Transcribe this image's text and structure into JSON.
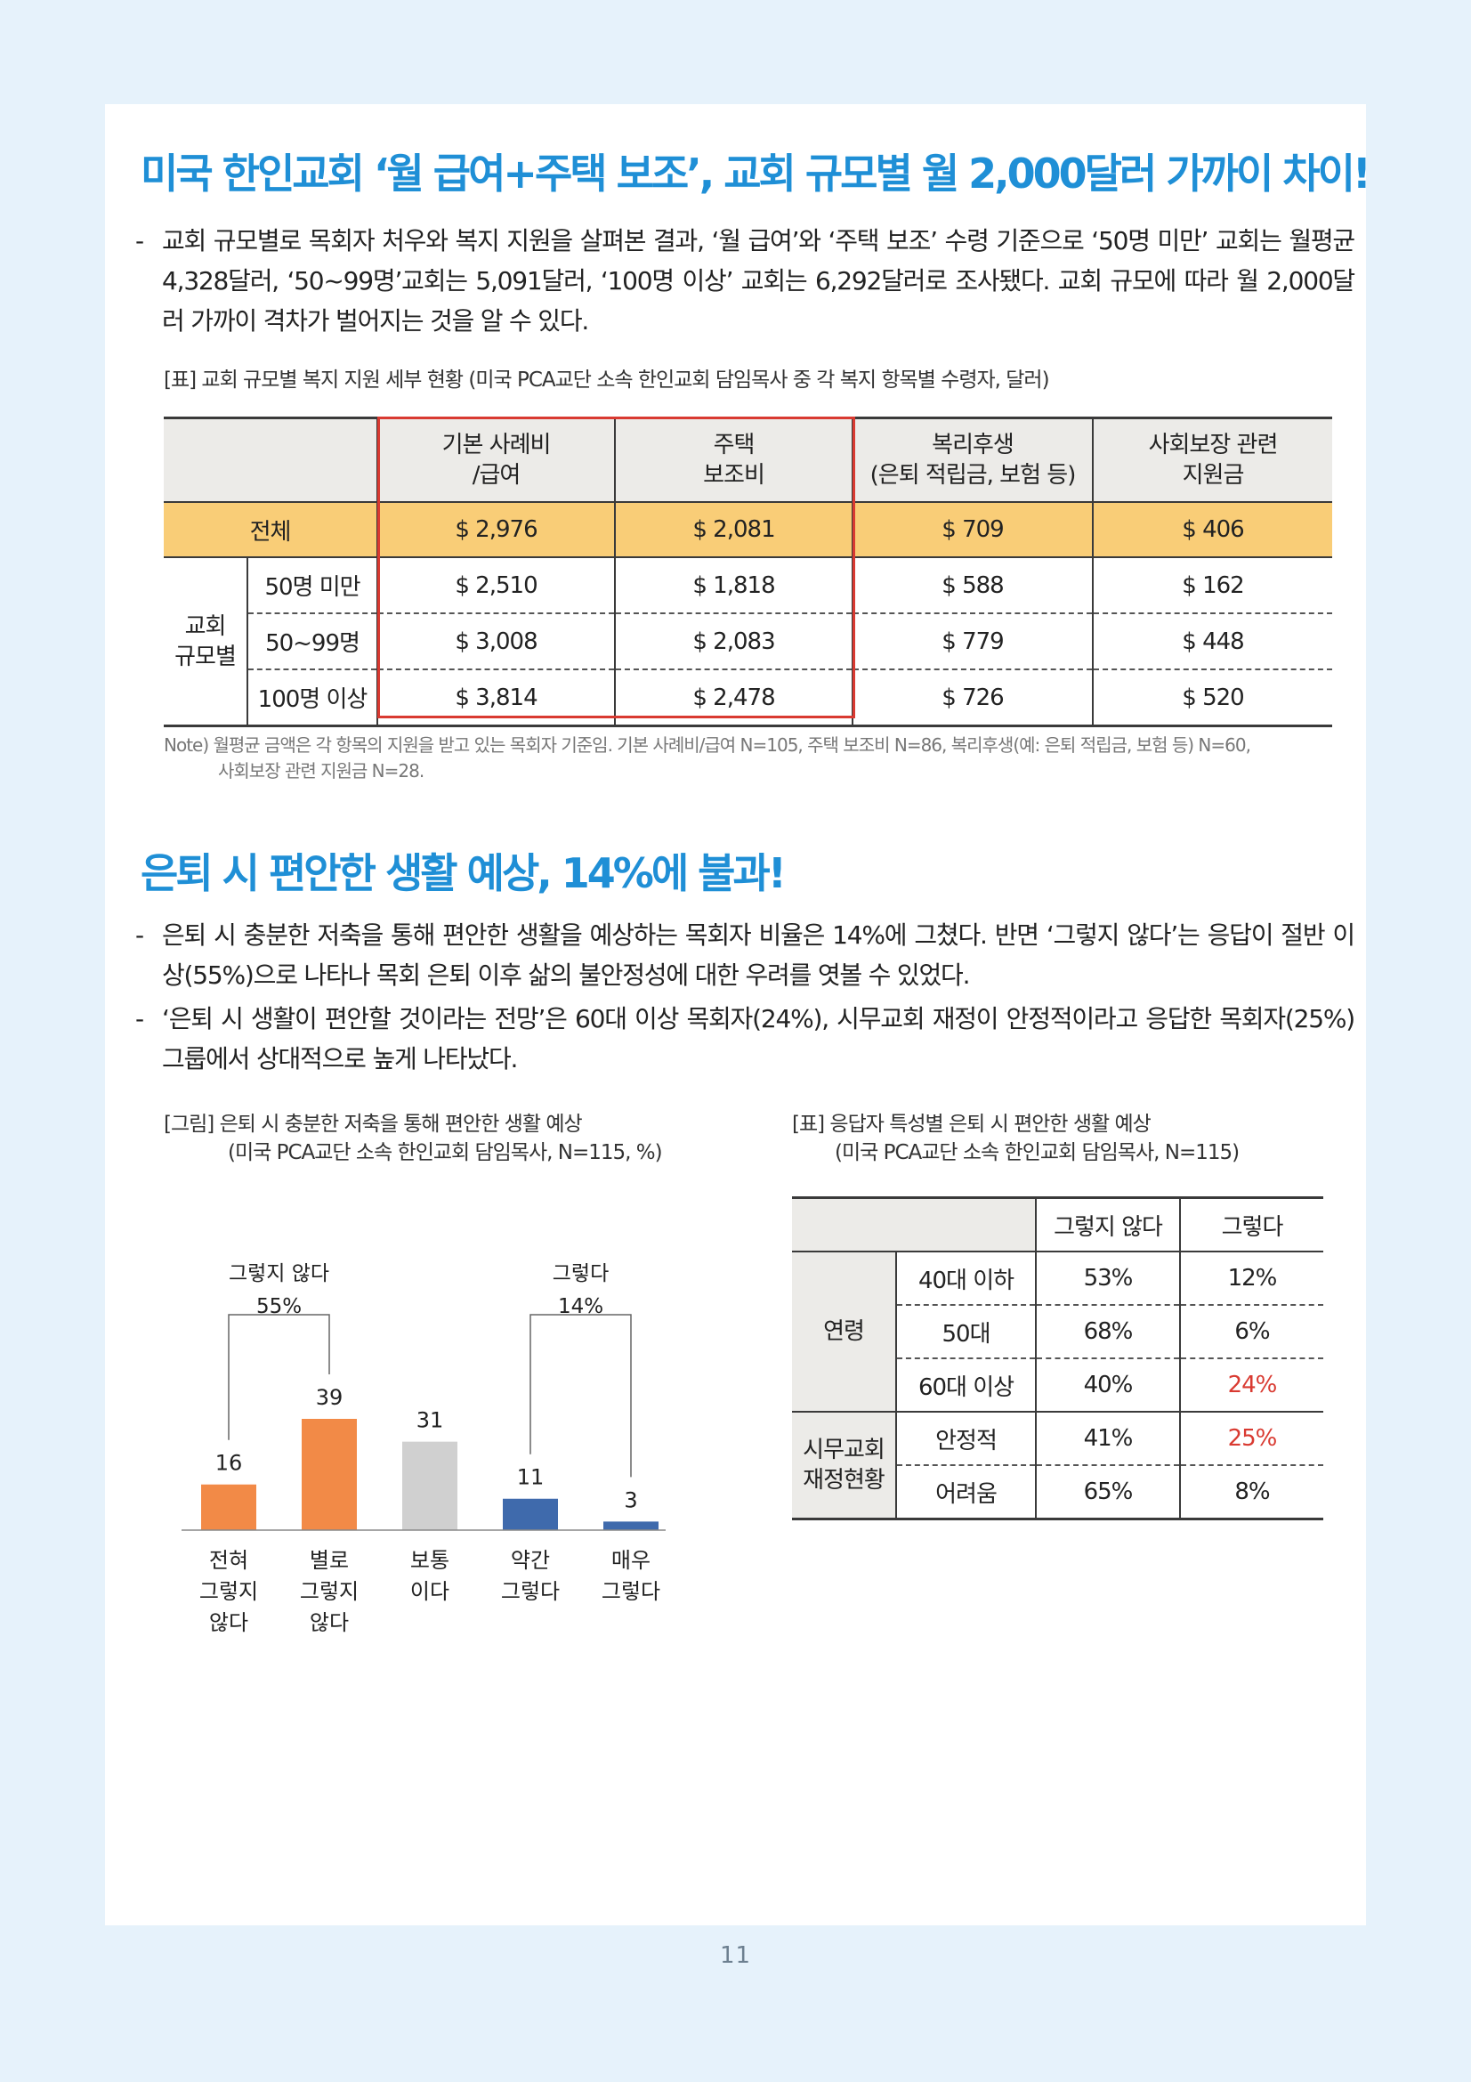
{
  "section1": {
    "title": "미국 한인교회 ‘월 급여+주택 보조’, 교회 규모별 월 2,000달러 가까이 차이!",
    "bullets": [
      "교회 규모별로 목회자 처우와 복지 지원을 살펴본 결과, ‘월 급여’와 ‘주택 보조’ 수령 기준으로 ‘50명 미만’ 교회는 월평균 4,328달러, ‘50~99명’교회는 5,091달러, ‘100명 이상’ 교회는 6,292달러로 조사됐다. 교회 규모에 따라 월 2,000달러 가까이 격차가 벌어지는 것을 알 수 있다."
    ],
    "table_caption": "[표] 교회 규모별 복지 지원 세부 현황 (미국 PCA교단 소속 한인교회 담임목사 중 각 복지 항목별 수령자, 달러)",
    "table": {
      "headers": [
        "기본 사례비\n/급여",
        "주택\n보조비",
        "복리후생\n(은퇴 적립금, 보험 등)",
        "사회보장 관련\n지원금"
      ],
      "total": {
        "label": "전체",
        "values": [
          "$ 2,976",
          "$ 2,081",
          "$ 709",
          "$ 406"
        ]
      },
      "group_label": "교회\n규모별",
      "rows": [
        {
          "label": "50명 미만",
          "values": [
            "$ 2,510",
            "$ 1,818",
            "$ 588",
            "$ 162"
          ]
        },
        {
          "label": "50~99명",
          "values": [
            "$ 3,008",
            "$ 2,083",
            "$ 779",
            "$ 448"
          ]
        },
        {
          "label": "100명 이상",
          "values": [
            "$ 3,814",
            "$ 2,478",
            "$ 726",
            "$ 520"
          ]
        }
      ],
      "highlight_color": "#d93a31"
    },
    "note_line1": "Note) 월평균 금액은 각 항목의 지원을 받고 있는 목회자 기준임. 기본 사례비/급여 N=105, 주택 보조비 N=86, 복리후생(예: 은퇴 적립금, 보험 등) N=60,",
    "note_line2": "사회보장 관련 지원금 N=28."
  },
  "section2": {
    "title": "은퇴 시 편안한 생활 예상, 14%에 불과!",
    "bullets": [
      "은퇴 시 충분한 저축을 통해 편안한 생활을 예상하는 목회자 비율은 14%에 그쳤다. 반면 ‘그렇지 않다’는 응답이 절반 이상(55%)으로 나타나 목회 은퇴 이후 삶의 불안정성에 대한 우려를 엿볼 수 있었다.",
      "‘은퇴 시 생활이 편안할 것이라는 전망’은 60대 이상 목회자(24%), 시무교회 재정이 안정적이라고 응답한 목회자(25%) 그룹에서 상대적으로 높게 나타났다."
    ],
    "figure_caption_line1": "[그림] 은퇴 시 충분한 저축을 통해 편안한 생활 예상",
    "figure_caption_line2": "(미국 PCA교단 소속 한인교회 담임목사, N=115, %)",
    "table_caption_line1": "[표] 응답자 특성별 은퇴 시 편안한 생활 예상",
    "table_caption_line2": "(미국 PCA교단 소속 한인교회 담임목사, N=115)",
    "table": {
      "headers": [
        "그렇지 않다",
        "그렇다"
      ],
      "groups": [
        {
          "label": "연령",
          "rows": [
            {
              "label": "40대 이하",
              "values": [
                "53%",
                "12%"
              ],
              "highlight": false
            },
            {
              "label": "50대",
              "values": [
                "68%",
                "6%"
              ],
              "highlight": false
            },
            {
              "label": "60대 이상",
              "values": [
                "40%",
                "24%"
              ],
              "highlight": true
            }
          ]
        },
        {
          "label": "시무교회\n재정현황",
          "rows": [
            {
              "label": "안정적",
              "values": [
                "41%",
                "25%"
              ],
              "highlight": true
            },
            {
              "label": "어려움",
              "values": [
                "65%",
                "8%"
              ],
              "highlight": false
            }
          ]
        }
      ]
    }
  },
  "chart_data": {
    "type": "bar",
    "categories": [
      "전혀\n그렇지\n않다",
      "별로\n그렇지\n않다",
      "보통\n이다",
      "약간\n그렇다",
      "매우\n그렇다"
    ],
    "values": [
      16,
      39,
      31,
      11,
      3
    ],
    "colors": [
      "#f28a47",
      "#f28a47",
      "#d0d0d0",
      "#3f6aac",
      "#3f6aac"
    ],
    "groups": [
      {
        "label": "그렇지 않다",
        "value": "55%",
        "members": [
          0,
          1
        ]
      },
      {
        "label": "그렇다",
        "value": "14%",
        "members": [
          3,
          4
        ]
      }
    ],
    "title": "",
    "ylim": [
      0,
      39
    ]
  },
  "page_number": "11"
}
